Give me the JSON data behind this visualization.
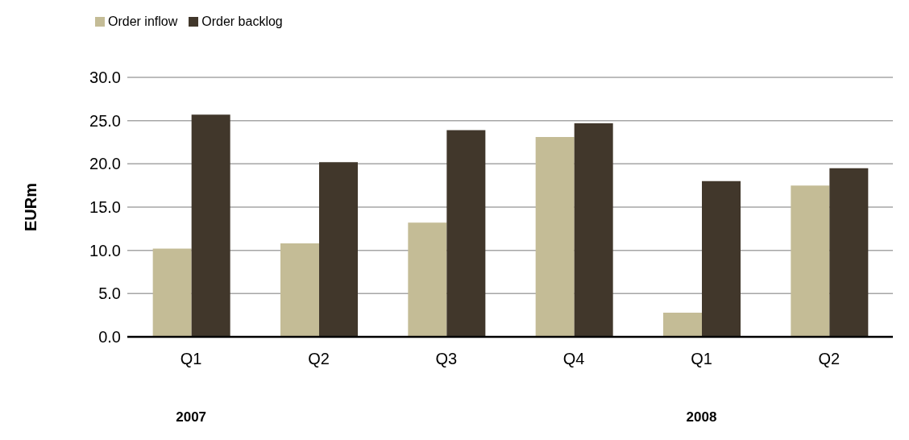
{
  "chart_data": {
    "type": "bar",
    "ylabel": "EURm",
    "categories": [
      "Q1",
      "Q2",
      "Q3",
      "Q4",
      "Q1",
      "Q2"
    ],
    "series": [
      {
        "name": "Order inflow",
        "color": "#c4bc96",
        "values": [
          10.2,
          10.8,
          13.2,
          23.1,
          2.8,
          17.5
        ]
      },
      {
        "name": "Order backlog",
        "color": "#41372b",
        "values": [
          25.7,
          20.2,
          23.9,
          24.7,
          18.0,
          19.5
        ]
      }
    ],
    "ylim": [
      0,
      30
    ],
    "yticks": [
      {
        "value": 0,
        "label": "0.0"
      },
      {
        "value": 5,
        "label": "5.0"
      },
      {
        "value": 10,
        "label": "10.0"
      },
      {
        "value": 15,
        "label": "15.0"
      },
      {
        "value": 20,
        "label": "20.0"
      },
      {
        "value": 25,
        "label": "25.0"
      },
      {
        "value": 30,
        "label": "30.0"
      }
    ],
    "grid": "y",
    "legend": "top left",
    "annotations": [
      "2007",
      "2008"
    ]
  }
}
